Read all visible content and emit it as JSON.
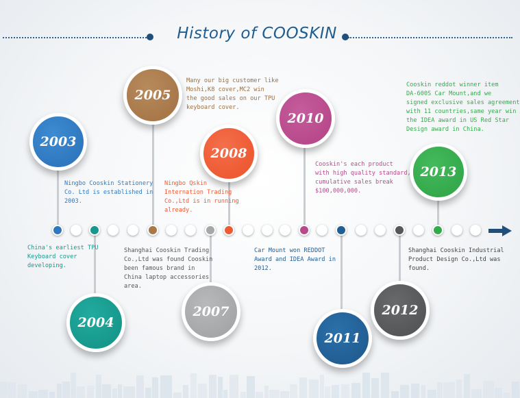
{
  "title": "History of COOSKIN",
  "colors": {
    "title": "#1f5c8f",
    "y2003": "#2f78bf",
    "y2004": "#17988c",
    "y2005": "#a8784a",
    "y2007": "#a6a7a9",
    "y2008": "#ee5a33",
    "y2010": "#b84a8c",
    "y2011": "#215e93",
    "y2012": "#555759",
    "y2013": "#34aa4c"
  },
  "milestones": [
    {
      "year": "2003",
      "text": "Ningbo Cooskin Stationery\nCo. Ltd is established in\n2003."
    },
    {
      "year": "2004",
      "text": "China's earliest TPU\nKeyboard cover\ndeveloping."
    },
    {
      "year": "2005",
      "text": "Many our big customer like\nMoshi,K8 cover,MC2 win\nthe good sales on our TPU\nkeyboard cover."
    },
    {
      "year": "2007",
      "text": "Shanghai Cooskin Trading\nCo.,Ltd was found Cooskin\nbeen famous brand in\nChina laptop accessories\narea."
    },
    {
      "year": "2008",
      "text": "Ningbo Qskin\nInternation Trading\nCo.,Ltd is in running\nalready."
    },
    {
      "year": "2010",
      "text": "Cooskin's each product\nwith high quality standard,\ncumulative sales break\n$100,000,000."
    },
    {
      "year": "2011",
      "text": "Car Mount won REDDOT\nAward and IDEA Award in\n2012."
    },
    {
      "year": "2012",
      "text": "Shanghai Cooskin Industrial\nProduct Design Co.,Ltd was\nfound."
    },
    {
      "year": "2013",
      "text": "Cooskin reddot winner item\nDA-600S Car Mount,and we\nsigned exclusive sales agreement\nwith 11 countries,same year win\nthe IDEA award in US Red Star\nDesign award in China."
    }
  ]
}
